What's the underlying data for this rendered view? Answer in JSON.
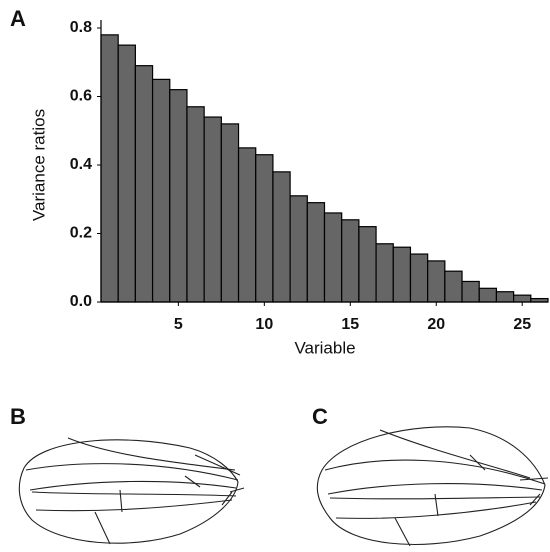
{
  "panel_labels": [
    "A",
    "B",
    "C"
  ],
  "chart_data": {
    "type": "bar",
    "xlabel": "Variable",
    "ylabel": "Variance ratios",
    "x": [
      1,
      2,
      3,
      4,
      5,
      6,
      7,
      8,
      9,
      10,
      11,
      12,
      13,
      14,
      15,
      16,
      17,
      18,
      19,
      20,
      21,
      22,
      23,
      24,
      25,
      26
    ],
    "values": [
      0.78,
      0.75,
      0.69,
      0.65,
      0.62,
      0.57,
      0.54,
      0.52,
      0.45,
      0.43,
      0.38,
      0.31,
      0.29,
      0.26,
      0.24,
      0.22,
      0.17,
      0.16,
      0.14,
      0.12,
      0.09,
      0.06,
      0.04,
      0.03,
      0.02,
      0.01
    ],
    "color": "#666666",
    "xlim": [
      0.5,
      26.5
    ],
    "xticks": [
      5,
      10,
      15,
      20,
      25
    ],
    "ylim": [
      0,
      0.8
    ],
    "yticks": [
      {
        "value": 0,
        "label": "0.0"
      },
      0.2,
      0.4,
      0.6,
      0.8
    ]
  }
}
